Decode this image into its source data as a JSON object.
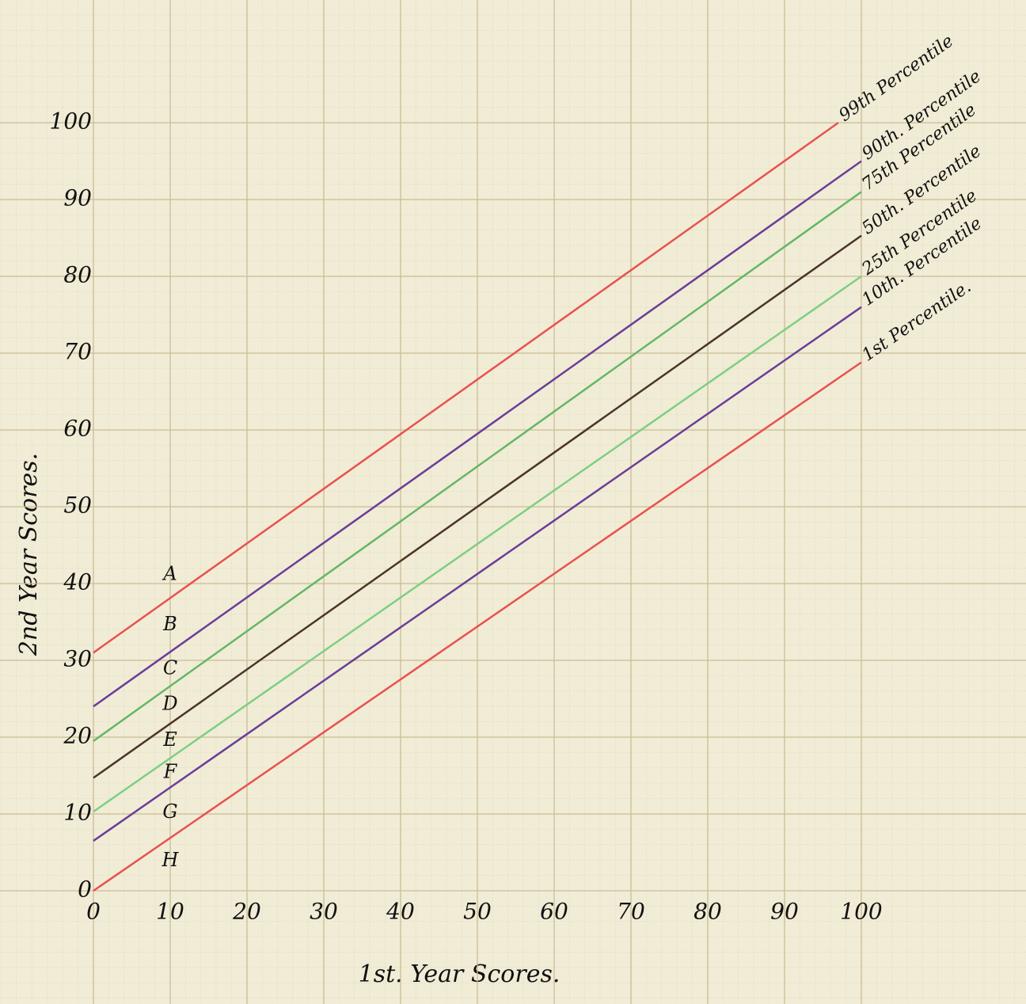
{
  "chart_data": {
    "type": "line",
    "xlabel": "1st. Year Scores.",
    "ylabel": "2nd Year Scores.",
    "xlim": [
      0,
      100
    ],
    "ylim": [
      0,
      100
    ],
    "xticks": [
      0,
      10,
      20,
      30,
      40,
      50,
      60,
      70,
      80,
      90,
      100
    ],
    "yticks": [
      0,
      10,
      20,
      30,
      40,
      50,
      60,
      70,
      80,
      90,
      100
    ],
    "grid": true,
    "series": [
      {
        "name": "99th Percentile",
        "color": "#e8524f",
        "x": [
          0,
          97
        ],
        "values": [
          31,
          100
        ]
      },
      {
        "name": "90th. Percentile",
        "color": "#6a3d9a",
        "x": [
          0,
          100
        ],
        "values": [
          24,
          95
        ]
      },
      {
        "name": "75th Percentile",
        "color": "#62b866",
        "x": [
          0,
          100
        ],
        "values": [
          19.5,
          91
        ]
      },
      {
        "name": "50th. Percentile",
        "color": "#4a3528",
        "x": [
          0,
          100
        ],
        "values": [
          14.7,
          85.3
        ]
      },
      {
        "name": "25th Percentile",
        "color": "#7ccf84",
        "x": [
          0,
          100
        ],
        "values": [
          10.3,
          80
        ]
      },
      {
        "name": "10th. Percentile",
        "color": "#6a3d9a",
        "x": [
          0,
          100
        ],
        "values": [
          6.5,
          76
        ]
      },
      {
        "name": "1st Percentile.",
        "color": "#e8524f",
        "x": [
          0,
          100
        ],
        "values": [
          0,
          68.8
        ]
      }
    ],
    "annotations": [
      "A",
      "B",
      "C",
      "D",
      "E",
      "F",
      "G",
      "H"
    ]
  }
}
